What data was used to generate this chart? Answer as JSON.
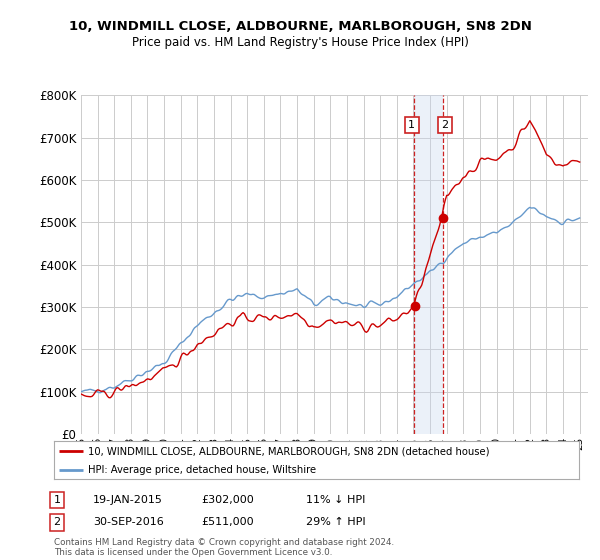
{
  "title_line1": "10, WINDMILL CLOSE, ALDBOURNE, MARLBOROUGH, SN8 2DN",
  "title_line2": "Price paid vs. HM Land Registry's House Price Index (HPI)",
  "background_color": "#ffffff",
  "plot_bg_color": "#ffffff",
  "grid_color": "#cccccc",
  "hpi_color": "#6699cc",
  "price_color": "#cc0000",
  "marker1_x": 2015.05,
  "marker2_x": 2016.75,
  "marker1_price": 302000,
  "marker2_price": 511000,
  "transaction1": {
    "date": "19-JAN-2015",
    "price": "£302,000",
    "hpi": "11% ↓ HPI"
  },
  "transaction2": {
    "date": "30-SEP-2016",
    "price": "£511,000",
    "hpi": "29% ↑ HPI"
  },
  "legend_label1": "10, WINDMILL CLOSE, ALDBOURNE, MARLBOROUGH, SN8 2DN (detached house)",
  "legend_label2": "HPI: Average price, detached house, Wiltshire",
  "footer": "Contains HM Land Registry data © Crown copyright and database right 2024.\nThis data is licensed under the Open Government Licence v3.0.",
  "ylim_max": 800000,
  "ylim_min": 0,
  "xmin": 1995,
  "xmax": 2025.5
}
